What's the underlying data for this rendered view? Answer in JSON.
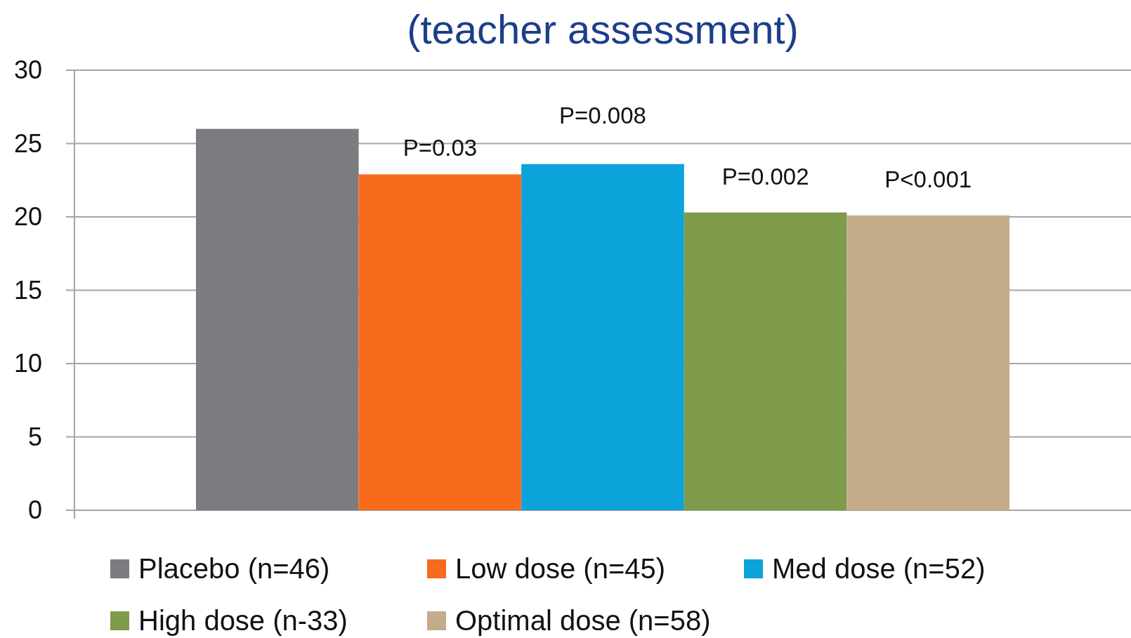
{
  "chart_data": {
    "type": "bar",
    "title": "(teacher assessment)",
    "categories": [
      null
    ],
    "series": [
      {
        "name": "Placebo (n=46)",
        "color": "#7b7c80",
        "values": [
          26
        ]
      },
      {
        "name": "Low dose (n=45)",
        "color": "#f76b1c",
        "values": [
          22.9
        ]
      },
      {
        "name": "Med dose (n=52)",
        "color": "#0ba3da",
        "values": [
          23.6
        ]
      },
      {
        "name": "High dose (n-33)",
        "color": "#7e9a4b",
        "values": [
          20.3
        ]
      },
      {
        "name": "Optimal dose (n=58)",
        "color": "#c4ac8a",
        "values": [
          20.1
        ]
      }
    ],
    "annotations": [
      {
        "text": "P=0.03",
        "y": 22.9
      },
      {
        "text": "P=0.008",
        "y": 23.6
      },
      {
        "text": "P=0.002",
        "y": 20.3
      },
      {
        "text": "P<0.001",
        "y": 20.1
      }
    ],
    "ylim": [
      0,
      30
    ],
    "yticks": [
      0,
      5,
      10,
      15,
      20,
      25,
      30
    ],
    "grid": "y",
    "legend": "bottom"
  }
}
